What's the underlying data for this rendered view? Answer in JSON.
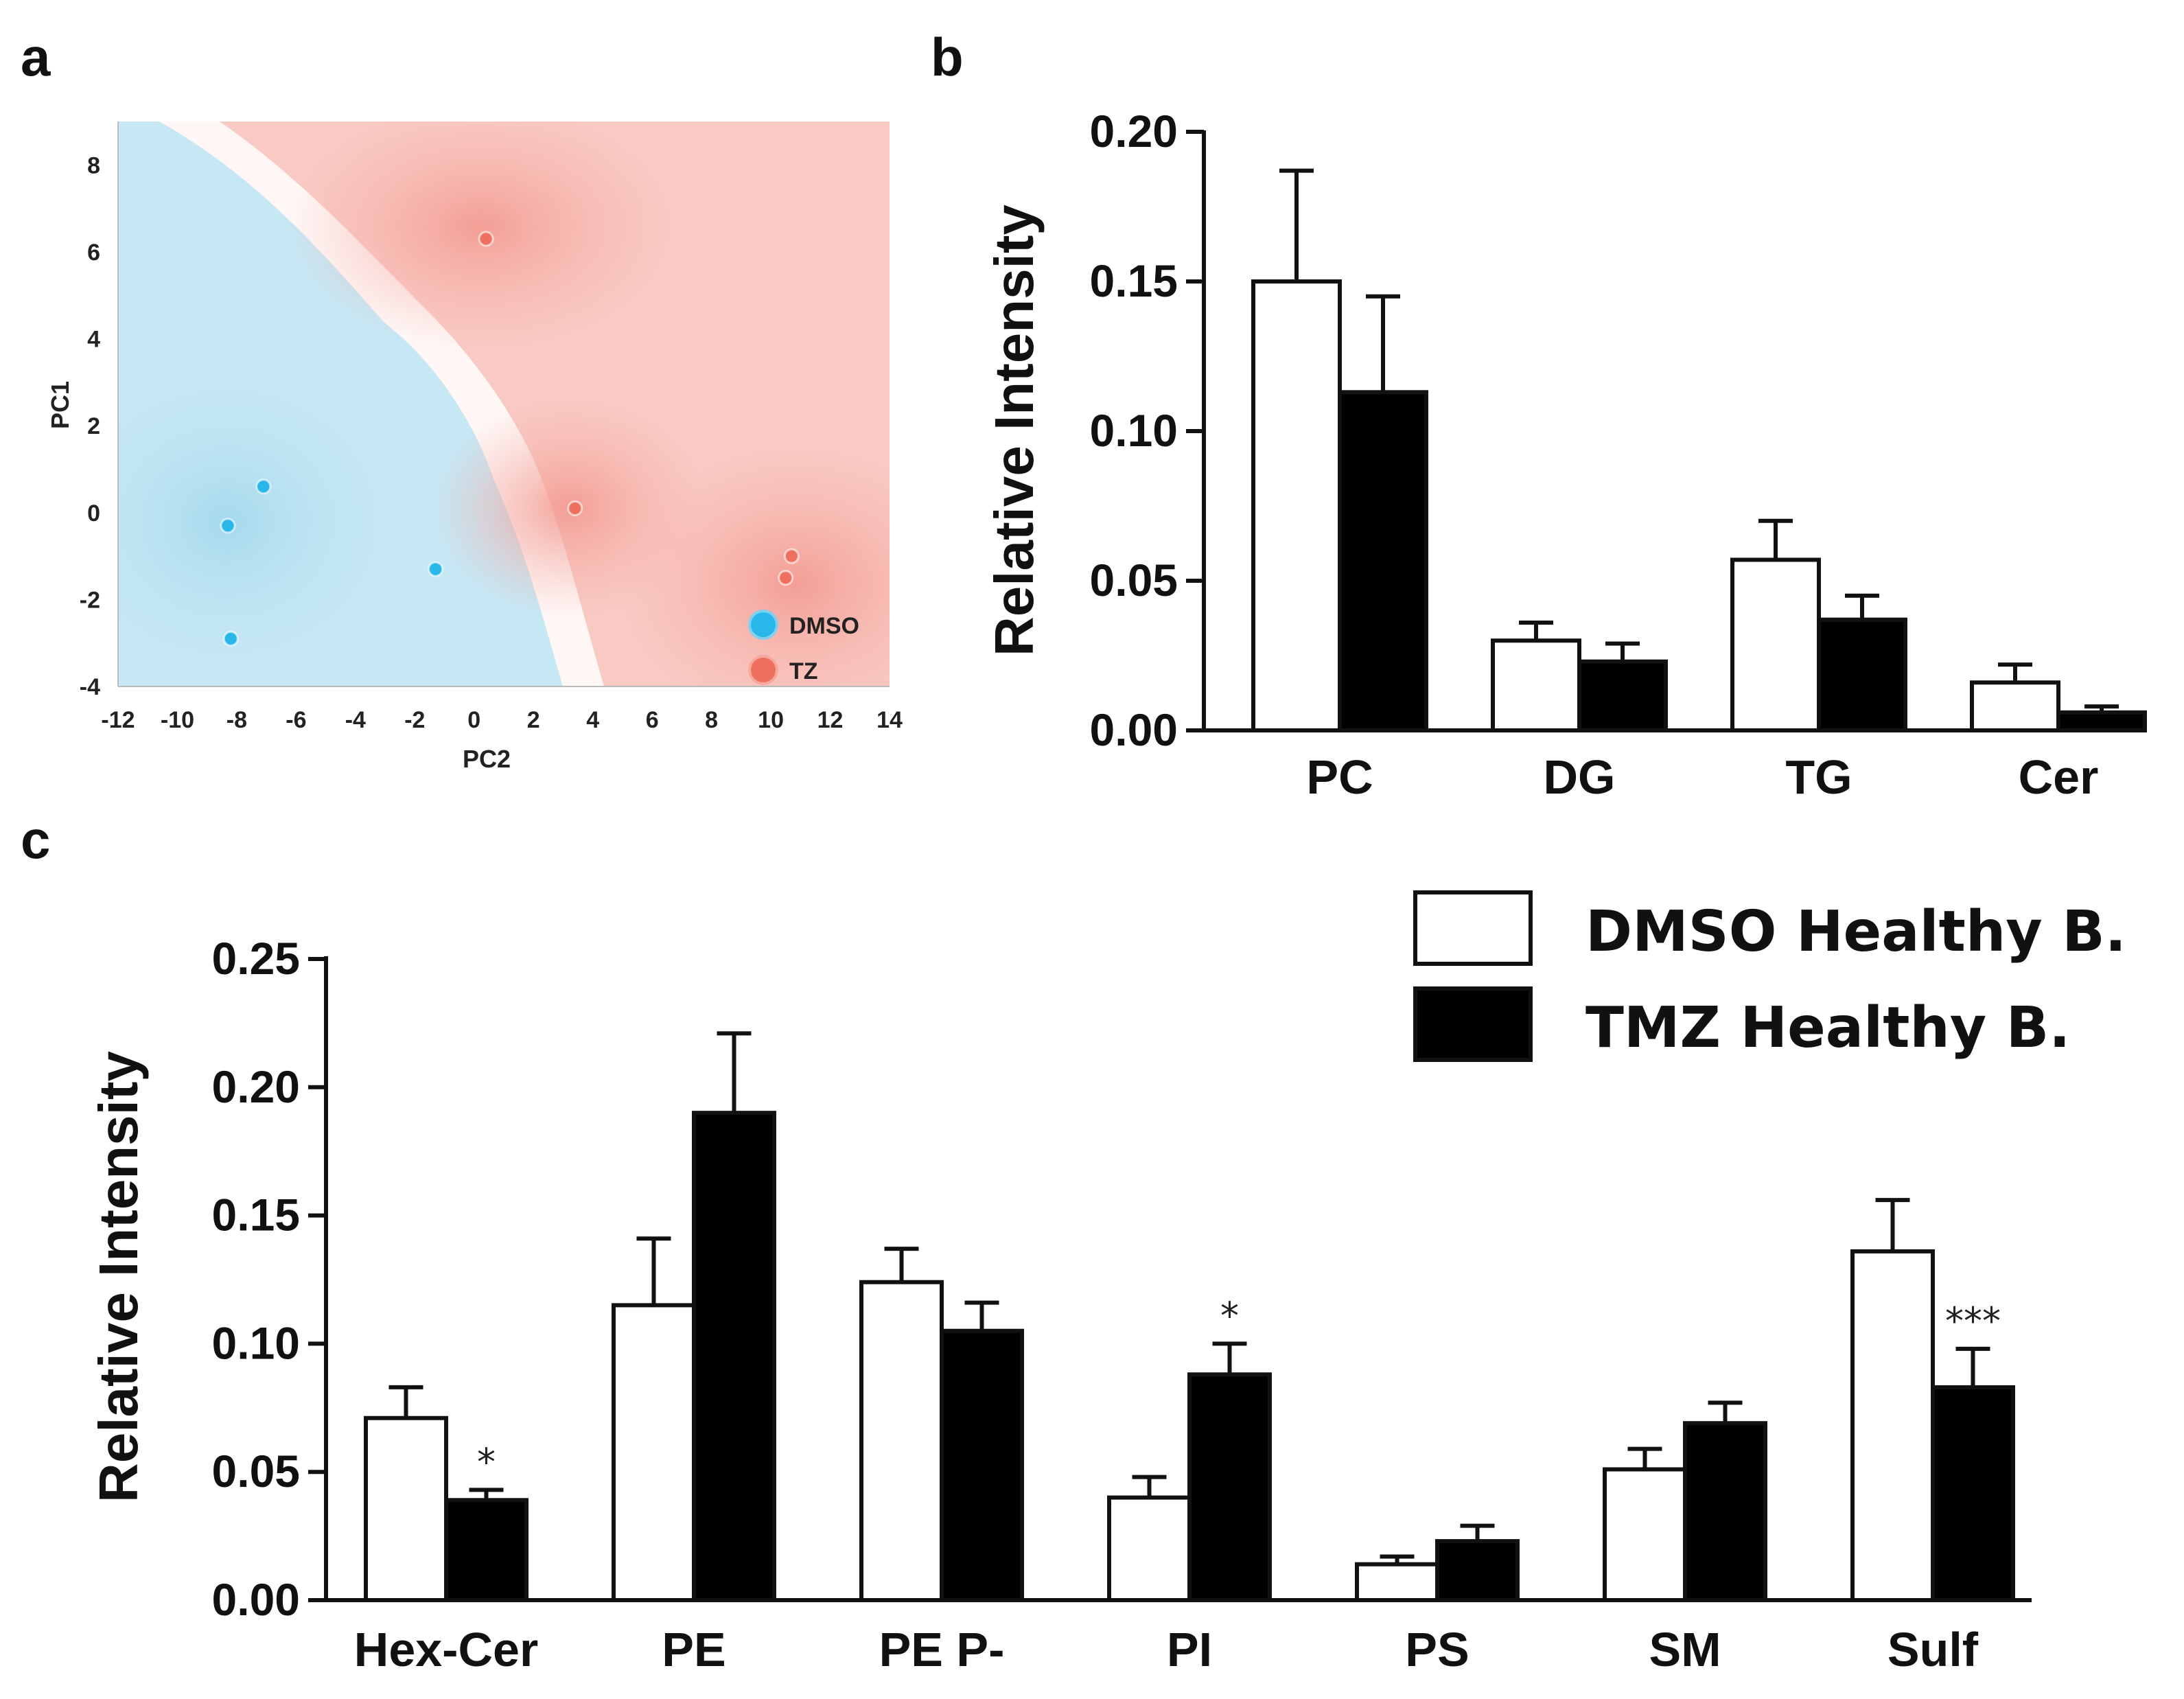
{
  "panel_labels": [
    "a",
    "b",
    "c"
  ],
  "chart_data": [
    {
      "id": "a",
      "type": "scatter",
      "title": "",
      "xlabel": "PC2",
      "ylabel": "PC1",
      "xlim": [
        -12,
        14
      ],
      "ylim": [
        -4,
        9
      ],
      "xticks": [
        -12,
        -10,
        -8,
        -6,
        -4,
        -2,
        0,
        2,
        4,
        6,
        8,
        10,
        12,
        14
      ],
      "yticks": [
        -4,
        -2,
        0,
        2,
        4,
        6,
        8
      ],
      "legend_position": "bottom-right",
      "series": [
        {
          "name": "DMSO",
          "color": "#29b6e8",
          "points": [
            [
              -7.1,
              0.6
            ],
            [
              -8.3,
              -0.3
            ],
            [
              -1.3,
              -1.3
            ],
            [
              -8.2,
              -2.9
            ]
          ]
        },
        {
          "name": "TZ",
          "color": "#f07060",
          "points": [
            [
              0.4,
              6.3
            ],
            [
              3.4,
              0.1
            ],
            [
              10.7,
              -1.0
            ],
            [
              10.5,
              -1.5
            ]
          ]
        }
      ]
    },
    {
      "id": "b",
      "type": "bar",
      "title": "",
      "xlabel": "",
      "ylabel": "Relative Intensity",
      "ylim": [
        0,
        0.2
      ],
      "yticks": [
        "0.00",
        "0.05",
        "0.10",
        "0.15",
        "0.20"
      ],
      "categories": [
        "PC",
        "DG",
        "TG",
        "Cer"
      ],
      "series": [
        {
          "name": "DMSO Healthy B.",
          "color": "#ffffff",
          "values": [
            0.15,
            0.03,
            0.057,
            0.016
          ],
          "errors": [
            0.037,
            0.006,
            0.013,
            0.006
          ]
        },
        {
          "name": "TMZ Healthy B.",
          "color": "#000000",
          "values": [
            0.113,
            0.023,
            0.037,
            0.006
          ],
          "errors": [
            0.032,
            0.006,
            0.008,
            0.002
          ]
        }
      ],
      "annotations": [
        "",
        "",
        "",
        ""
      ]
    },
    {
      "id": "c",
      "type": "bar",
      "title": "",
      "xlabel": "",
      "ylabel": "Relative Intensity",
      "ylim": [
        0,
        0.25
      ],
      "yticks": [
        "0.00",
        "0.05",
        "0.10",
        "0.15",
        "0.20",
        "0.25"
      ],
      "categories": [
        "Hex-Cer",
        "PE",
        "PE P-",
        "PI",
        "PS",
        "SM",
        "Sulf"
      ],
      "series": [
        {
          "name": "DMSO Healthy B.",
          "color": "#ffffff",
          "values": [
            0.071,
            0.115,
            0.124,
            0.04,
            0.014,
            0.051,
            0.136
          ],
          "errors": [
            0.012,
            0.026,
            0.013,
            0.008,
            0.003,
            0.008,
            0.02
          ]
        },
        {
          "name": "TMZ Healthy B.",
          "color": "#000000",
          "values": [
            0.039,
            0.19,
            0.105,
            0.088,
            0.023,
            0.069,
            0.083
          ],
          "errors": [
            0.004,
            0.031,
            0.011,
            0.012,
            0.006,
            0.008,
            0.015
          ]
        }
      ],
      "annotations": [
        "*",
        "",
        "",
        "*",
        "",
        "",
        "***"
      ],
      "legend_position": "top-right"
    }
  ]
}
